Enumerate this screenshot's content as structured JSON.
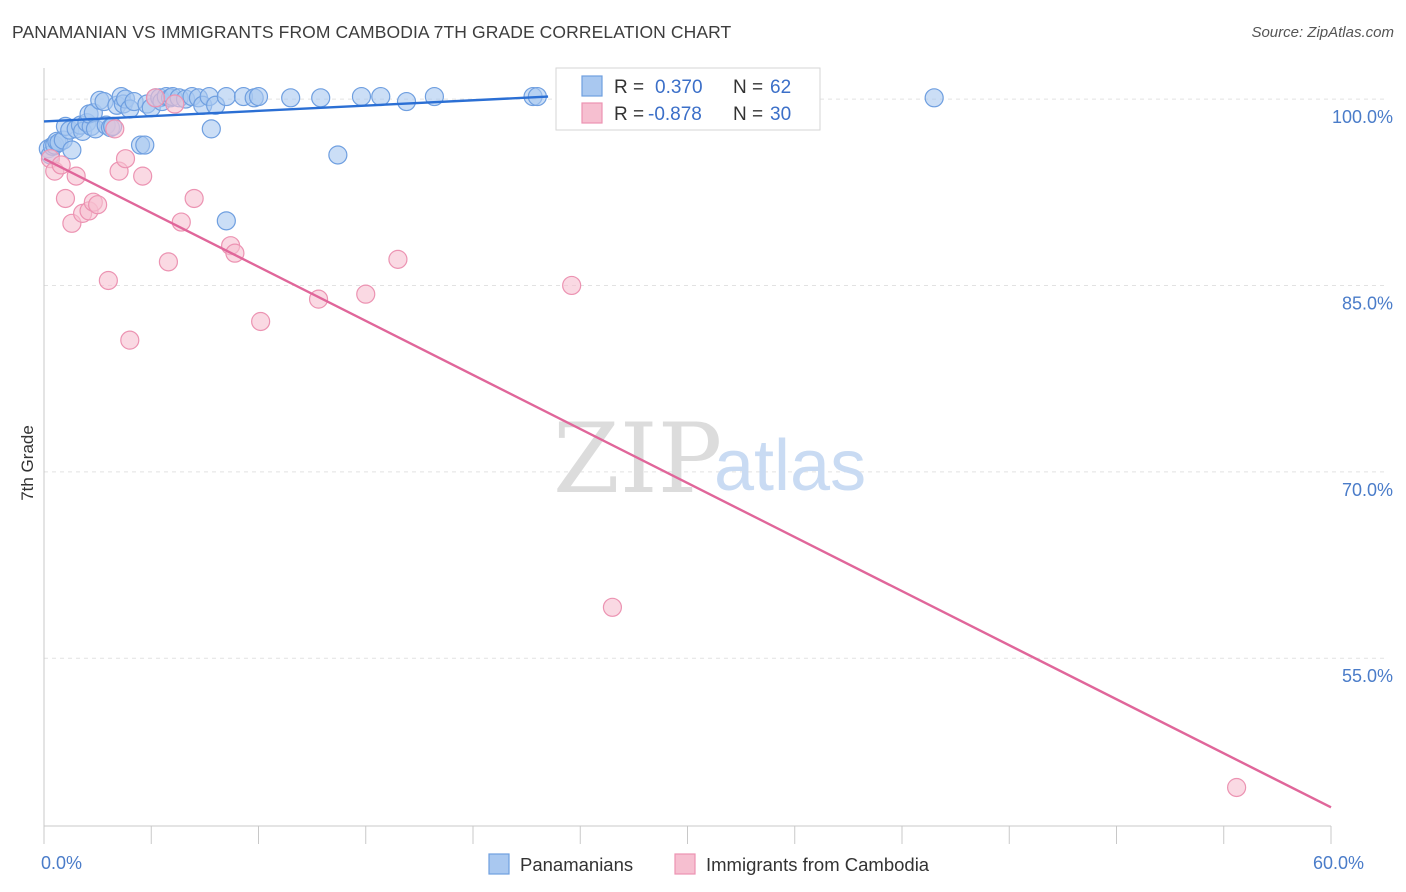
{
  "title": "PANAMANIAN VS IMMIGRANTS FROM CAMBODIA 7TH GRADE CORRELATION CHART",
  "source": "Source: ZipAtlas.com",
  "watermark": {
    "zip": "ZIP",
    "atlas": "atlas"
  },
  "colors": {
    "blue_fill": "#a9c8f0",
    "blue_stroke": "#6f9fe0",
    "blue_line": "#2b6fd4",
    "pink_fill": "#f6bfd0",
    "pink_stroke": "#ec93b2",
    "pink_line": "#e0669a",
    "grid": "#e2e2e2",
    "axis_label": "#4a7cc9"
  },
  "chart_data": {
    "type": "scatter",
    "title": "PANAMANIAN VS IMMIGRANTS FROM CAMBODIA 7TH GRADE CORRELATION CHART",
    "xlabel": "",
    "ylabel": "7th Grade",
    "xlim": [
      0,
      60
    ],
    "ylim": [
      41.5,
      102.5
    ],
    "x_tick_labels": [
      {
        "value": 0,
        "label": "0.0%"
      },
      {
        "value": 60,
        "label": "60.0%"
      }
    ],
    "y_ticks": [
      {
        "value": 100,
        "label": "100.0%"
      },
      {
        "value": 85,
        "label": "85.0%"
      },
      {
        "value": 70,
        "label": "70.0%"
      },
      {
        "value": 55,
        "label": "55.0%"
      }
    ],
    "legend_stats": [
      {
        "r_label": "R =",
        "r_value": "0.370",
        "n_label": "N =",
        "n_value": "62"
      },
      {
        "r_label": "R =",
        "r_value": "-0.878",
        "n_label": "N =",
        "n_value": "30"
      }
    ],
    "series": [
      {
        "name": "Panamanians",
        "trend": {
          "x": [
            0,
            23.5
          ],
          "y": [
            98.2,
            100.2
          ]
        },
        "points": [
          [
            0.2,
            96.0
          ],
          [
            0.3,
            95.5
          ],
          [
            0.4,
            96.2
          ],
          [
            0.5,
            96.3
          ],
          [
            0.6,
            96.6
          ],
          [
            0.7,
            96.5
          ],
          [
            0.9,
            96.7
          ],
          [
            1.0,
            97.8
          ],
          [
            1.2,
            97.5
          ],
          [
            1.3,
            95.9
          ],
          [
            1.5,
            97.6
          ],
          [
            1.7,
            97.9
          ],
          [
            1.8,
            97.4
          ],
          [
            2.0,
            98.1
          ],
          [
            2.2,
            97.8
          ],
          [
            2.1,
            98.8
          ],
          [
            2.3,
            98.9
          ],
          [
            2.4,
            97.6
          ],
          [
            2.6,
            99.9
          ],
          [
            2.8,
            99.8
          ],
          [
            2.9,
            97.9
          ],
          [
            3.1,
            97.7
          ],
          [
            3.2,
            97.8
          ],
          [
            3.4,
            99.5
          ],
          [
            3.6,
            100.2
          ],
          [
            3.7,
            99.6
          ],
          [
            3.8,
            100.0
          ],
          [
            4.0,
            99.2
          ],
          [
            4.2,
            99.8
          ],
          [
            4.5,
            96.3
          ],
          [
            4.7,
            96.3
          ],
          [
            4.8,
            99.6
          ],
          [
            5.0,
            99.3
          ],
          [
            5.2,
            100.1
          ],
          [
            5.4,
            100.1
          ],
          [
            5.5,
            99.8
          ],
          [
            5.7,
            100.2
          ],
          [
            5.9,
            100.1
          ],
          [
            6.0,
            100.2
          ],
          [
            6.3,
            100.1
          ],
          [
            6.6,
            100.0
          ],
          [
            6.9,
            100.2
          ],
          [
            7.2,
            100.1
          ],
          [
            7.4,
            99.5
          ],
          [
            7.7,
            100.2
          ],
          [
            7.8,
            97.6
          ],
          [
            8.0,
            99.5
          ],
          [
            8.5,
            100.2
          ],
          [
            9.3,
            100.2
          ],
          [
            9.8,
            100.1
          ],
          [
            10.0,
            100.2
          ],
          [
            11.5,
            100.1
          ],
          [
            12.9,
            100.1
          ],
          [
            13.7,
            95.5
          ],
          [
            14.8,
            100.2
          ],
          [
            15.7,
            100.2
          ],
          [
            16.9,
            99.8
          ],
          [
            18.2,
            100.2
          ],
          [
            22.8,
            100.2
          ],
          [
            23.0,
            100.2
          ],
          [
            8.5,
            90.2
          ],
          [
            41.5,
            100.1
          ]
        ]
      },
      {
        "name": "Immigrants from Cambodia",
        "trend": {
          "x": [
            0,
            60
          ],
          "y": [
            95.2,
            43.0
          ]
        },
        "points": [
          [
            0.3,
            95.2
          ],
          [
            0.5,
            94.2
          ],
          [
            0.8,
            94.7
          ],
          [
            1.0,
            92.0
          ],
          [
            1.3,
            90.0
          ],
          [
            1.5,
            93.8
          ],
          [
            1.8,
            90.8
          ],
          [
            2.1,
            91.0
          ],
          [
            2.3,
            91.7
          ],
          [
            2.5,
            91.5
          ],
          [
            3.0,
            85.4
          ],
          [
            3.3,
            97.6
          ],
          [
            3.5,
            94.2
          ],
          [
            3.8,
            95.2
          ],
          [
            4.0,
            80.6
          ],
          [
            4.6,
            93.8
          ],
          [
            5.2,
            100.1
          ],
          [
            5.8,
            86.9
          ],
          [
            6.1,
            99.6
          ],
          [
            6.4,
            90.1
          ],
          [
            7.0,
            92.0
          ],
          [
            8.7,
            88.2
          ],
          [
            8.9,
            87.6
          ],
          [
            10.1,
            82.1
          ],
          [
            12.8,
            83.9
          ],
          [
            15.0,
            84.3
          ],
          [
            16.5,
            87.1
          ],
          [
            24.6,
            85.0
          ],
          [
            26.5,
            59.1
          ],
          [
            55.6,
            44.6
          ]
        ]
      }
    ]
  }
}
